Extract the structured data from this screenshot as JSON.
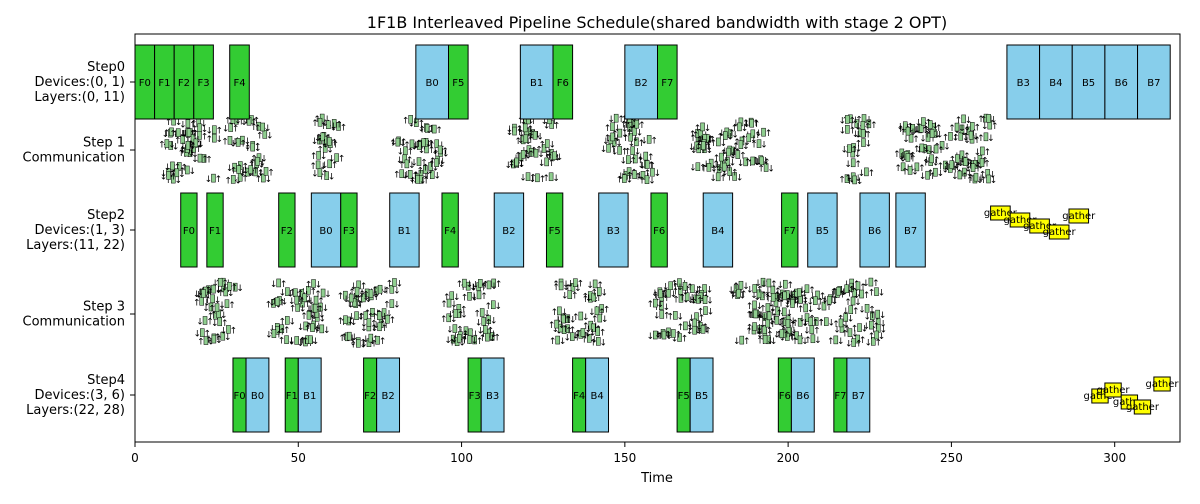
{
  "chart_data": {
    "type": "gantt",
    "title": "1F1B Interleaved Pipeline Schedule(shared bandwidth with stage 2 OPT)",
    "xlabel": "Time",
    "ylabel": "",
    "xlim": [
      0,
      320
    ],
    "x_ticks": [
      0,
      50,
      100,
      150,
      200,
      250,
      300
    ],
    "grid": false,
    "colors": {
      "forward": "#33cc33",
      "backward": "#87ceeb",
      "gather": "#ffff00",
      "comm": "#8fce8f",
      "edge": "#000000"
    },
    "rows": [
      {
        "label_lines": [
          "Step0",
          "Devices:(0, 1)",
          "Layers:(0, 11)"
        ],
        "kind": "compute"
      },
      {
        "label_lines": [
          "Step 1",
          "Communication"
        ],
        "kind": "comm"
      },
      {
        "label_lines": [
          "Step2",
          "Devices:(1, 3)",
          "Layers:(11, 22)"
        ],
        "kind": "compute"
      },
      {
        "label_lines": [
          "Step 3",
          "Communication"
        ],
        "kind": "comm"
      },
      {
        "label_lines": [
          "Step4",
          "Devices:(3, 6)",
          "Layers:(22, 28)"
        ],
        "kind": "compute"
      }
    ],
    "tasks": [
      {
        "row": 0,
        "label": "F0",
        "start": 0,
        "end": 6,
        "type": "forward"
      },
      {
        "row": 0,
        "label": "F1",
        "start": 6,
        "end": 12,
        "type": "forward"
      },
      {
        "row": 0,
        "label": "F2",
        "start": 12,
        "end": 18,
        "type": "forward"
      },
      {
        "row": 0,
        "label": "F3",
        "start": 18,
        "end": 24,
        "type": "forward"
      },
      {
        "row": 0,
        "label": "F4",
        "start": 29,
        "end": 35,
        "type": "forward"
      },
      {
        "row": 0,
        "label": "B0",
        "start": 86,
        "end": 96,
        "type": "backward"
      },
      {
        "row": 0,
        "label": "F5",
        "start": 96,
        "end": 102,
        "type": "forward"
      },
      {
        "row": 0,
        "label": "B1",
        "start": 118,
        "end": 128,
        "type": "backward"
      },
      {
        "row": 0,
        "label": "F6",
        "start": 128,
        "end": 134,
        "type": "forward"
      },
      {
        "row": 0,
        "label": "B2",
        "start": 150,
        "end": 160,
        "type": "backward"
      },
      {
        "row": 0,
        "label": "F7",
        "start": 160,
        "end": 166,
        "type": "forward"
      },
      {
        "row": 0,
        "label": "B3",
        "start": 267,
        "end": 277,
        "type": "backward"
      },
      {
        "row": 0,
        "label": "B4",
        "start": 277,
        "end": 287,
        "type": "backward"
      },
      {
        "row": 0,
        "label": "B5",
        "start": 287,
        "end": 297,
        "type": "backward"
      },
      {
        "row": 0,
        "label": "B6",
        "start": 297,
        "end": 307,
        "type": "backward"
      },
      {
        "row": 0,
        "label": "B7",
        "start": 307,
        "end": 317,
        "type": "backward"
      },
      {
        "row": 2,
        "label": "F0",
        "start": 14,
        "end": 19,
        "type": "forward"
      },
      {
        "row": 2,
        "label": "F1",
        "start": 22,
        "end": 27,
        "type": "forward"
      },
      {
        "row": 2,
        "label": "F2",
        "start": 44,
        "end": 49,
        "type": "forward"
      },
      {
        "row": 2,
        "label": "B0",
        "start": 54,
        "end": 63,
        "type": "backward"
      },
      {
        "row": 2,
        "label": "F3",
        "start": 63,
        "end": 68,
        "type": "forward"
      },
      {
        "row": 2,
        "label": "B1",
        "start": 78,
        "end": 87,
        "type": "backward"
      },
      {
        "row": 2,
        "label": "F4",
        "start": 94,
        "end": 99,
        "type": "forward"
      },
      {
        "row": 2,
        "label": "B2",
        "start": 110,
        "end": 119,
        "type": "backward"
      },
      {
        "row": 2,
        "label": "F5",
        "start": 126,
        "end": 131,
        "type": "forward"
      },
      {
        "row": 2,
        "label": "B3",
        "start": 142,
        "end": 151,
        "type": "backward"
      },
      {
        "row": 2,
        "label": "F6",
        "start": 158,
        "end": 163,
        "type": "forward"
      },
      {
        "row": 2,
        "label": "B4",
        "start": 174,
        "end": 183,
        "type": "backward"
      },
      {
        "row": 2,
        "label": "F7",
        "start": 198,
        "end": 203,
        "type": "forward"
      },
      {
        "row": 2,
        "label": "B5",
        "start": 206,
        "end": 215,
        "type": "backward"
      },
      {
        "row": 2,
        "label": "B6",
        "start": 222,
        "end": 231,
        "type": "backward"
      },
      {
        "row": 2,
        "label": "B7",
        "start": 233,
        "end": 242,
        "type": "backward"
      },
      {
        "row": 4,
        "label": "F0",
        "start": 30,
        "end": 34,
        "type": "forward"
      },
      {
        "row": 4,
        "label": "B0",
        "start": 34,
        "end": 41,
        "type": "backward"
      },
      {
        "row": 4,
        "label": "F1",
        "start": 46,
        "end": 50,
        "type": "forward"
      },
      {
        "row": 4,
        "label": "B1",
        "start": 50,
        "end": 57,
        "type": "backward"
      },
      {
        "row": 4,
        "label": "F2",
        "start": 70,
        "end": 74,
        "type": "forward"
      },
      {
        "row": 4,
        "label": "B2",
        "start": 74,
        "end": 81,
        "type": "backward"
      },
      {
        "row": 4,
        "label": "F3",
        "start": 102,
        "end": 106,
        "type": "forward"
      },
      {
        "row": 4,
        "label": "B3",
        "start": 106,
        "end": 113,
        "type": "backward"
      },
      {
        "row": 4,
        "label": "F4",
        "start": 134,
        "end": 138,
        "type": "forward"
      },
      {
        "row": 4,
        "label": "B4",
        "start": 138,
        "end": 145,
        "type": "backward"
      },
      {
        "row": 4,
        "label": "F5",
        "start": 166,
        "end": 170,
        "type": "forward"
      },
      {
        "row": 4,
        "label": "B5",
        "start": 170,
        "end": 177,
        "type": "backward"
      },
      {
        "row": 4,
        "label": "F6",
        "start": 197,
        "end": 201,
        "type": "forward"
      },
      {
        "row": 4,
        "label": "B6",
        "start": 201,
        "end": 208,
        "type": "backward"
      },
      {
        "row": 4,
        "label": "F7",
        "start": 214,
        "end": 218,
        "type": "forward"
      },
      {
        "row": 4,
        "label": "B7",
        "start": 218,
        "end": 225,
        "type": "backward"
      }
    ],
    "gathers": [
      {
        "row": 2,
        "label": "gather",
        "start": 262,
        "end": 268,
        "y": 0.85
      },
      {
        "row": 2,
        "label": "gather",
        "start": 268,
        "end": 274,
        "y": 0.5
      },
      {
        "row": 2,
        "label": "gather",
        "start": 274,
        "end": 280,
        "y": 0.2
      },
      {
        "row": 2,
        "label": "gather",
        "start": 280,
        "end": 286,
        "y": -0.1
      },
      {
        "row": 2,
        "label": "gather",
        "start": 286,
        "end": 292,
        "y": 0.7
      },
      {
        "row": 4,
        "label": "gather",
        "start": 293,
        "end": 298,
        "y": -0.05
      },
      {
        "row": 4,
        "label": "gather",
        "start": 297,
        "end": 302,
        "y": 0.25
      },
      {
        "row": 4,
        "label": "gather",
        "start": 302,
        "end": 307,
        "y": -0.35
      },
      {
        "row": 4,
        "label": "gather",
        "start": 306,
        "end": 311,
        "y": -0.6
      },
      {
        "row": 4,
        "label": "gather",
        "start": 312,
        "end": 317,
        "y": 0.55
      }
    ],
    "comm_clusters": [
      {
        "row": 1,
        "center": 17,
        "width": 16
      },
      {
        "row": 1,
        "center": 35,
        "width": 12
      },
      {
        "row": 1,
        "center": 60,
        "width": 8
      },
      {
        "row": 1,
        "center": 87,
        "width": 14
      },
      {
        "row": 1,
        "center": 122,
        "width": 14
      },
      {
        "row": 1,
        "center": 152,
        "width": 14
      },
      {
        "row": 1,
        "center": 183,
        "width": 22
      },
      {
        "row": 1,
        "center": 222,
        "width": 8
      },
      {
        "row": 1,
        "center": 248,
        "width": 28
      },
      {
        "row": 3,
        "center": 25,
        "width": 12
      },
      {
        "row": 3,
        "center": 50,
        "width": 16
      },
      {
        "row": 3,
        "center": 72,
        "width": 16
      },
      {
        "row": 3,
        "center": 103,
        "width": 14
      },
      {
        "row": 3,
        "center": 136,
        "width": 14
      },
      {
        "row": 3,
        "center": 167,
        "width": 16
      },
      {
        "row": 3,
        "center": 190,
        "width": 14
      },
      {
        "row": 3,
        "center": 213,
        "width": 30
      }
    ]
  }
}
